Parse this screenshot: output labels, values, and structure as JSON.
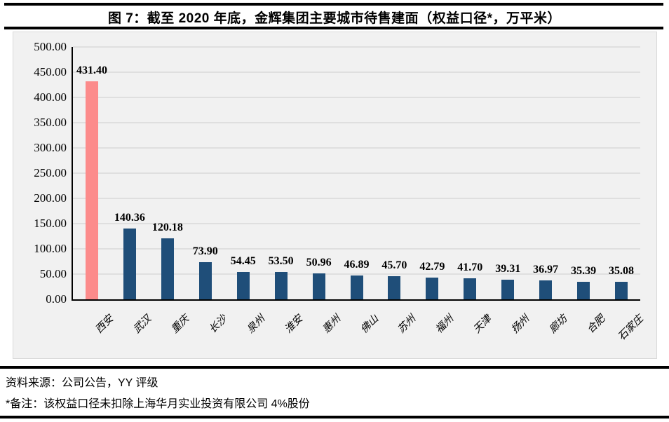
{
  "figure": {
    "title": "图 7：截至 2020 年底，金辉集团主要城市待售建面（权益口径*，万平米）",
    "source": "资料来源：公司公告，YY 评级",
    "footnote": "*备注：该权益口径未扣除上海华月实业投资有限公司 4%股份"
  },
  "chart_data": {
    "type": "bar",
    "title": "截至 2020 年底，金辉集团主要城市待售建面（权益口径*，万平米）",
    "categories": [
      "西安",
      "武汉",
      "重庆",
      "长沙",
      "泉州",
      "淮安",
      "惠州",
      "佛山",
      "苏州",
      "福州",
      "天津",
      "扬州",
      "廊坊",
      "合肥",
      "石家庄"
    ],
    "values": [
      431.4,
      140.36,
      120.18,
      73.9,
      54.45,
      53.5,
      50.96,
      46.89,
      45.7,
      42.79,
      41.7,
      39.31,
      36.97,
      35.39,
      35.08
    ],
    "value_labels": true,
    "value_label_decimals": 2,
    "highlight_index": 0,
    "xlabel": "",
    "ylabel": "",
    "ylim": [
      0,
      500
    ],
    "ytick_step": 50,
    "grid": true,
    "legend": "none",
    "colors": {
      "highlight_bar": "#FC8B8B",
      "bar": "#1F4E79",
      "panel_bg": "#F1F1F1",
      "gridline": "#DFDFDF",
      "axis": "#000000"
    }
  }
}
